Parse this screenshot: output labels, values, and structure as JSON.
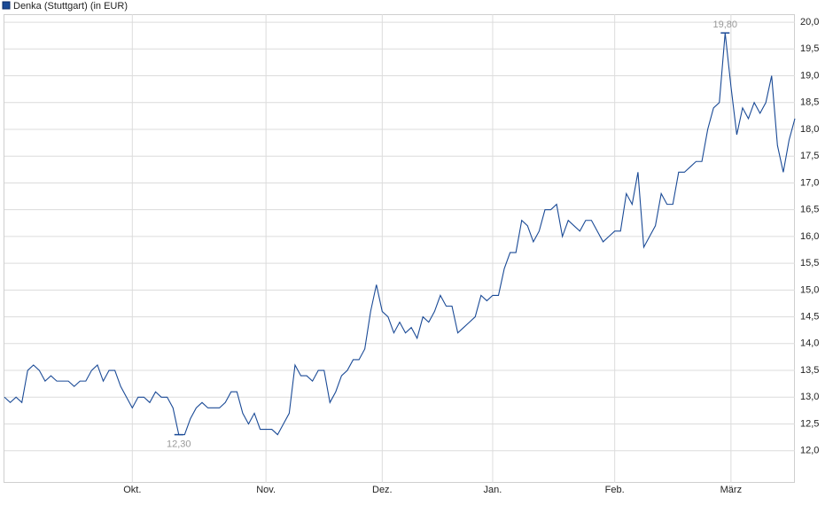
{
  "chart_data": {
    "type": "line",
    "series": [
      {
        "name": "Denka (Stuttgart) (in EUR)",
        "color": "#1a4a96",
        "values": [
          13.0,
          12.9,
          13.0,
          12.9,
          13.5,
          13.6,
          13.5,
          13.3,
          13.4,
          13.3,
          13.3,
          13.3,
          13.2,
          13.3,
          13.3,
          13.5,
          13.6,
          13.3,
          13.5,
          13.5,
          13.2,
          13.0,
          12.8,
          13.0,
          13.0,
          12.9,
          13.1,
          13.0,
          13.0,
          12.8,
          12.3,
          12.3,
          12.6,
          12.8,
          12.9,
          12.8,
          12.8,
          12.8,
          12.9,
          13.1,
          13.1,
          12.7,
          12.5,
          12.7,
          12.4,
          12.4,
          12.4,
          12.3,
          12.5,
          12.7,
          13.6,
          13.4,
          13.4,
          13.3,
          13.5,
          13.5,
          12.9,
          13.1,
          13.4,
          13.5,
          13.7,
          13.7,
          13.9,
          14.6,
          15.1,
          14.6,
          14.5,
          14.2,
          14.4,
          14.2,
          14.3,
          14.1,
          14.5,
          14.4,
          14.6,
          14.9,
          14.7,
          14.7,
          14.2,
          14.3,
          14.4,
          14.5,
          14.9,
          14.8,
          14.9,
          14.9,
          15.4,
          15.7,
          15.7,
          16.3,
          16.2,
          15.9,
          16.1,
          16.5,
          16.5,
          16.6,
          16.0,
          16.3,
          16.2,
          16.1,
          16.3,
          16.3,
          16.1,
          15.9,
          16.0,
          16.1,
          16.1,
          16.8,
          16.6,
          17.2,
          15.8,
          16.0,
          16.2,
          16.8,
          16.6,
          16.6,
          17.2,
          17.2,
          17.3,
          17.4,
          17.4,
          18.0,
          18.4,
          18.5,
          19.8,
          18.8,
          17.9,
          18.4,
          18.2,
          18.5,
          18.3,
          18.5,
          19.0,
          17.7,
          17.2,
          17.8,
          18.2
        ]
      }
    ],
    "categories": [
      null,
      null,
      null,
      null,
      null,
      null,
      null,
      null,
      null,
      null,
      null,
      null,
      null,
      null,
      null,
      null,
      null,
      null,
      null,
      null,
      null,
      null,
      "Okt.",
      null,
      null,
      null,
      null,
      null,
      null,
      null,
      null,
      null,
      null,
      null,
      null,
      null,
      null,
      null,
      null,
      null,
      null,
      null,
      null,
      null,
      null,
      "Nov.",
      null,
      null,
      null,
      null,
      null,
      null,
      null,
      null,
      null,
      null,
      null,
      null,
      null,
      null,
      null,
      null,
      null,
      null,
      null,
      "Dez.",
      null,
      null,
      null,
      null,
      null,
      null,
      null,
      null,
      null,
      null,
      null,
      null,
      null,
      null,
      null,
      null,
      null,
      null,
      "Jan.",
      null,
      null,
      null,
      null,
      null,
      null,
      null,
      null,
      null,
      null,
      null,
      null,
      null,
      null,
      null,
      null,
      null,
      null,
      null,
      null,
      "Feb.",
      null,
      null,
      null,
      null,
      null,
      null,
      null,
      null,
      null,
      null,
      null,
      null,
      null,
      null,
      null,
      null,
      null,
      null,
      null,
      "März",
      null,
      null,
      null,
      null,
      null,
      null,
      null,
      null,
      null,
      null,
      null
    ],
    "annotations": [
      {
        "value": 12.3,
        "label": "12,30"
      },
      {
        "value": 19.8,
        "label": "19,80"
      }
    ],
    "ylim": [
      11.4,
      20.15
    ],
    "yticks": [
      {
        "value": 12.0,
        "label": "12,0"
      },
      {
        "value": 12.5,
        "label": "12,5"
      },
      {
        "value": 13.0,
        "label": "13,0"
      },
      {
        "value": 13.5,
        "label": "13,5"
      },
      {
        "value": 14.0,
        "label": "14,0"
      },
      {
        "value": 14.5,
        "label": "14,5"
      },
      {
        "value": 15.0,
        "label": "15,0"
      },
      {
        "value": 15.5,
        "label": "15,5"
      },
      {
        "value": 16.0,
        "label": "16,0"
      },
      {
        "value": 16.5,
        "label": "16,5"
      },
      {
        "value": 17.0,
        "label": "17,0"
      },
      {
        "value": 17.5,
        "label": "17,5"
      },
      {
        "value": 18.0,
        "label": "18,0"
      },
      {
        "value": 18.5,
        "label": "18,5"
      },
      {
        "value": 19.0,
        "label": "19,0"
      },
      {
        "value": 19.5,
        "label": "19,5"
      },
      {
        "value": 20.0,
        "label": "20,0"
      }
    ],
    "grid": true
  }
}
